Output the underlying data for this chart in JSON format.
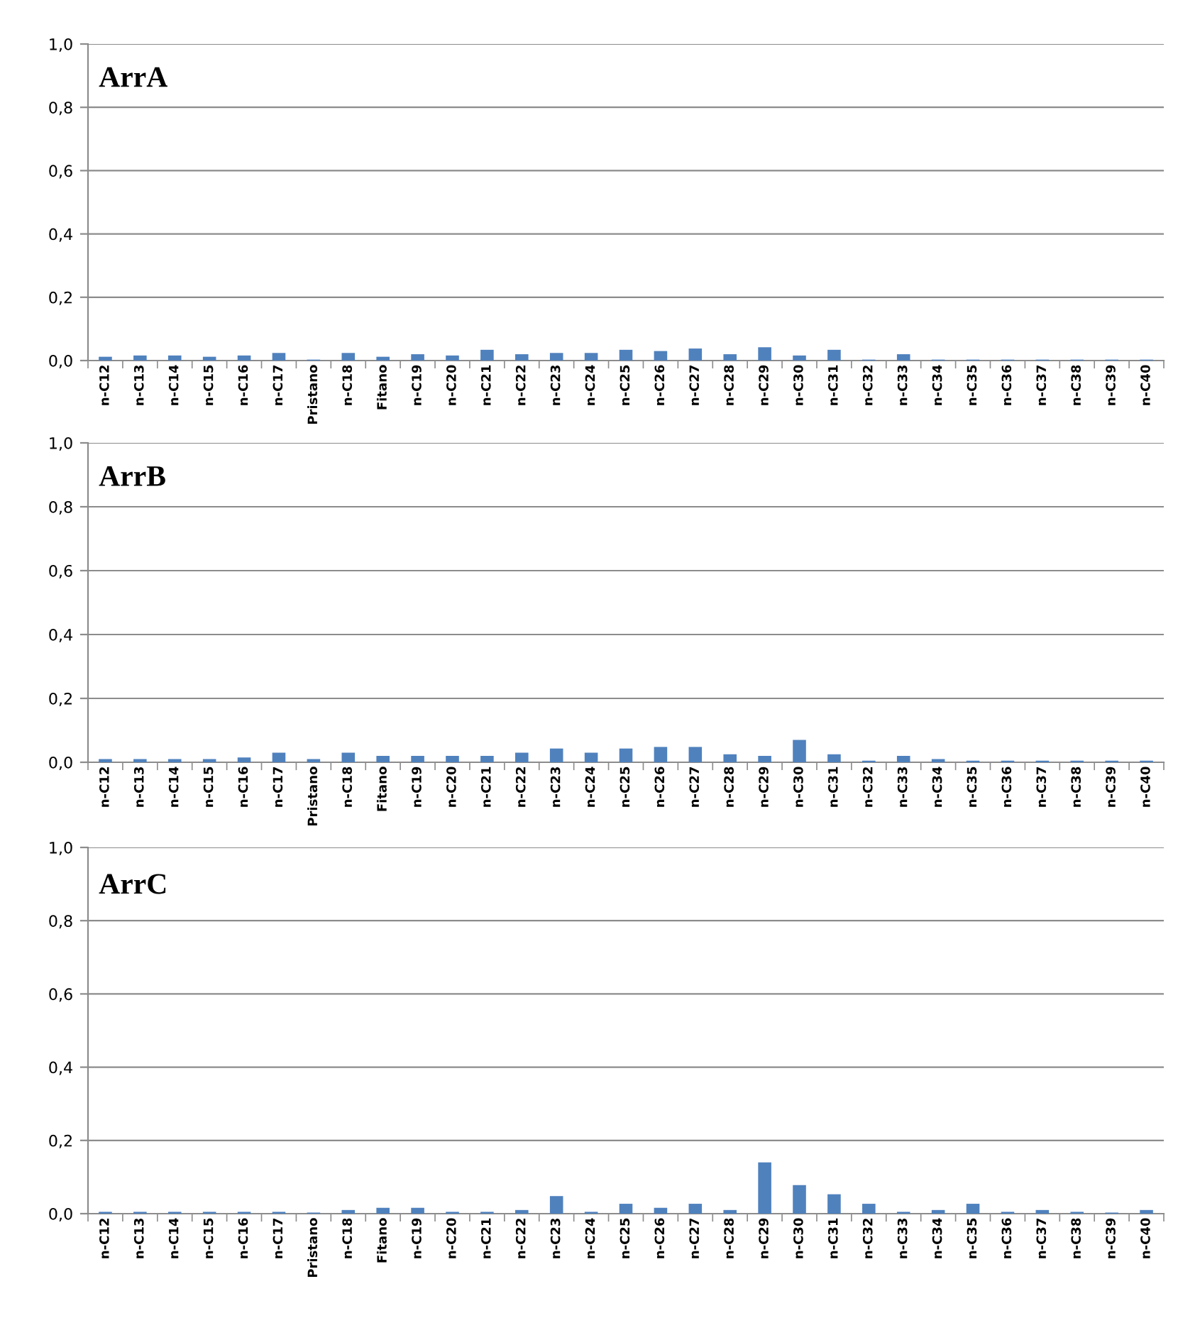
{
  "chart_data": [
    {
      "type": "bar",
      "annotations": [
        "ArrA"
      ],
      "categories": [
        "n-C12",
        "n-C13",
        "n-C14",
        "n-C15",
        "n-C16",
        "n-C17",
        "Pristano",
        "n-C18",
        "Fitano",
        "n-C19",
        "n-C20",
        "n-C21",
        "n-C22",
        "n-C23",
        "n-C24",
        "n-C25",
        "n-C26",
        "n-C27",
        "n-C28",
        "n-C29",
        "n-C30",
        "n-C31",
        "n-C32",
        "n-C33",
        "n-C34",
        "n-C35",
        "n-C36",
        "n-C37",
        "n-C38",
        "n-C39",
        "n-C40"
      ],
      "values": [
        0.012,
        0.016,
        0.016,
        0.012,
        0.016,
        0.024,
        0.003,
        0.024,
        0.012,
        0.02,
        0.016,
        0.034,
        0.02,
        0.024,
        0.024,
        0.034,
        0.03,
        0.038,
        0.02,
        0.042,
        0.016,
        0.034,
        0.003,
        0.02,
        0.003,
        0.003,
        0.003,
        0.003,
        0.003,
        0.003,
        0.003
      ],
      "color": "#4f81bd",
      "ylim": [
        0,
        1
      ],
      "yticks": [
        {
          "value": 0,
          "label": "0,0"
        },
        {
          "value": 0.2,
          "label": "0,2"
        },
        {
          "value": 0.4,
          "label": "0,4"
        },
        {
          "value": 0.6,
          "label": "0,6"
        },
        {
          "value": 0.8,
          "label": "0,8"
        },
        {
          "value": 1,
          "label": "1,0"
        }
      ],
      "grid": "y"
    },
    {
      "type": "bar",
      "annotations": [
        "ArrB"
      ],
      "categories": [
        "n-C12",
        "n-C13",
        "n-C14",
        "n-C15",
        "n-C16",
        "n-C17",
        "Pristano",
        "n-C18",
        "Fitano",
        "n-C19",
        "n-C20",
        "n-C21",
        "n-C22",
        "n-C23",
        "n-C24",
        "n-C25",
        "n-C26",
        "n-C27",
        "n-C28",
        "n-C29",
        "n-C30",
        "n-C31",
        "n-C32",
        "n-C33",
        "n-C34",
        "n-C35",
        "n-C36",
        "n-C37",
        "n-C38",
        "n-C39",
        "n-C40"
      ],
      "values": [
        0.01,
        0.01,
        0.01,
        0.01,
        0.015,
        0.03,
        0.01,
        0.03,
        0.02,
        0.02,
        0.02,
        0.02,
        0.03,
        0.043,
        0.03,
        0.043,
        0.048,
        0.048,
        0.025,
        0.02,
        0.07,
        0.025,
        0.005,
        0.02,
        0.01,
        0.005,
        0.005,
        0.005,
        0.005,
        0.005,
        0.005
      ],
      "color": "#4f81bd",
      "ylim": [
        0,
        1
      ],
      "yticks": [
        {
          "value": 0,
          "label": "0,0"
        },
        {
          "value": 0.2,
          "label": "0,2"
        },
        {
          "value": 0.4,
          "label": "0,4"
        },
        {
          "value": 0.6,
          "label": "0,6"
        },
        {
          "value": 0.8,
          "label": "0,8"
        },
        {
          "value": 1,
          "label": "1,0"
        }
      ],
      "grid": "y"
    },
    {
      "type": "bar",
      "annotations": [
        "ArrC"
      ],
      "categories": [
        "n-C12",
        "n-C13",
        "n-C14",
        "n-C15",
        "n-C16",
        "n-C17",
        "Pristano",
        "n-C18",
        "Fitano",
        "n-C19",
        "n-C20",
        "n-C21",
        "n-C22",
        "n-C23",
        "n-C24",
        "n-C25",
        "n-C26",
        "n-C27",
        "n-C28",
        "n-C29",
        "n-C30",
        "n-C31",
        "n-C32",
        "n-C33",
        "n-C34",
        "n-C35",
        "n-C36",
        "n-C37",
        "n-C38",
        "n-C39",
        "n-C40"
      ],
      "values": [
        0.005,
        0.005,
        0.005,
        0.005,
        0.005,
        0.005,
        0.003,
        0.01,
        0.016,
        0.016,
        0.005,
        0.005,
        0.01,
        0.048,
        0.005,
        0.027,
        0.016,
        0.027,
        0.01,
        0.14,
        0.078,
        0.053,
        0.027,
        0.005,
        0.01,
        0.027,
        0.005,
        0.01,
        0.005,
        0.003,
        0.01
      ],
      "color": "#4f81bd",
      "ylim": [
        0,
        1
      ],
      "yticks": [
        {
          "value": 0,
          "label": "0,0"
        },
        {
          "value": 0.2,
          "label": "0,2"
        },
        {
          "value": 0.4,
          "label": "0,4"
        },
        {
          "value": 0.6,
          "label": "0,6"
        },
        {
          "value": 0.8,
          "label": "0,8"
        },
        {
          "value": 1,
          "label": "1,0"
        }
      ],
      "grid": "y"
    }
  ]
}
